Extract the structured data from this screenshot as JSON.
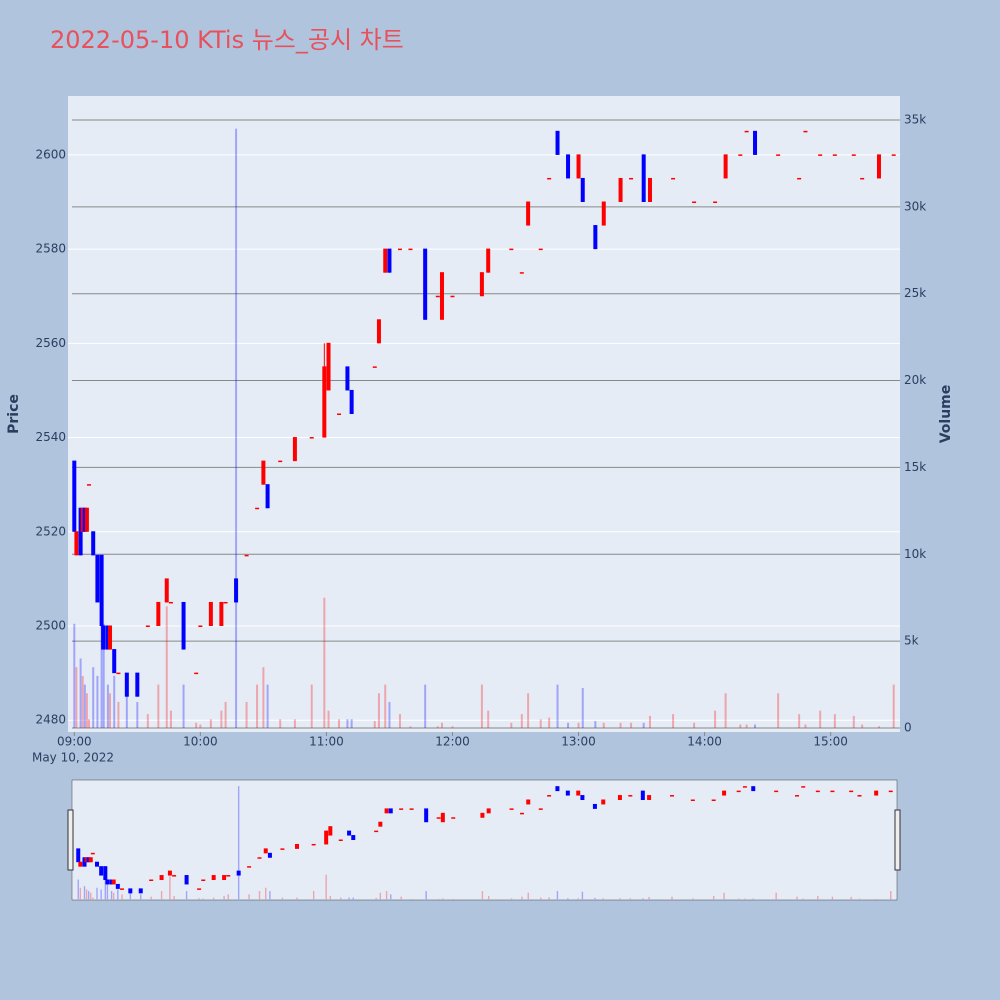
{
  "chart_data": {
    "type": "candlestick",
    "title": "2022-05-10 KTis 뉴스_공시 차트",
    "y_label": "Price",
    "y2_label": "Volume",
    "x_date_label": "May 10, 2022",
    "increasing_color": "#ff0000",
    "decreasing_color": "#0000ff",
    "xlim": [
      "08:57",
      "15:33"
    ],
    "xticks": [
      "09:00",
      "10:00",
      "11:00",
      "12:00",
      "13:00",
      "14:00",
      "15:00"
    ],
    "ylim": [
      2477.5,
      2612.5
    ],
    "yticks": [
      2480,
      2500,
      2520,
      2540,
      2560,
      2580,
      2600
    ],
    "y2lim": [
      -230,
      36380
    ],
    "y2ticks": [
      0,
      {
        "value": 5000,
        "label": "5k"
      },
      {
        "value": 10000,
        "label": "10k"
      },
      {
        "value": 15000,
        "label": "15k"
      },
      {
        "value": 20000,
        "label": "20k"
      },
      {
        "value": 25000,
        "label": "25k"
      },
      {
        "value": 30000,
        "label": "30k"
      },
      {
        "value": 35000,
        "label": "35k"
      }
    ],
    "x": [
      "09:00",
      "09:01",
      "09:03",
      "09:04",
      "09:05",
      "09:06",
      "09:07",
      "09:09",
      "09:11",
      "09:13",
      "09:14",
      "09:16",
      "09:17",
      "09:19",
      "09:21",
      "09:25",
      "09:30",
      "09:35",
      "09:40",
      "09:44",
      "09:46",
      "09:52",
      "09:58",
      "10:00",
      "10:05",
      "10:10",
      "10:12",
      "10:17",
      "10:22",
      "10:27",
      "10:30",
      "10:32",
      "10:38",
      "10:45",
      "10:53",
      "10:59",
      "11:01",
      "11:06",
      "11:10",
      "11:12",
      "11:23",
      "11:25",
      "11:28",
      "11:30",
      "11:35",
      "11:40",
      "11:47",
      "11:53",
      "11:55",
      "12:00",
      "12:14",
      "12:17",
      "12:28",
      "12:33",
      "12:36",
      "12:42",
      "12:46",
      "12:50",
      "12:55",
      "13:00",
      "13:02",
      "13:08",
      "13:12",
      "13:20",
      "13:25",
      "13:31",
      "13:34",
      "13:45",
      "13:55",
      "14:05",
      "14:10",
      "14:17",
      "14:20",
      "14:24",
      "14:35",
      "14:45",
      "14:48",
      "14:55",
      "15:02",
      "15:11",
      "15:15",
      "15:23",
      "15:30"
    ],
    "open": [
      2535,
      2515,
      2525,
      2520,
      2525,
      2520,
      2530,
      2520,
      2515,
      2515,
      2500,
      2500,
      2495,
      2495,
      2490,
      2490,
      2490,
      2500,
      2500,
      2505,
      2505,
      2505,
      2490,
      2500,
      2500,
      2500,
      2505,
      2510,
      2515,
      2525,
      2530,
      2530,
      2535,
      2535,
      2540,
      2540,
      2550,
      2545,
      2555,
      2550,
      2555,
      2560,
      2575,
      2580,
      2580,
      2580,
      2580,
      2570,
      2565,
      2570,
      2570,
      2575,
      2580,
      2575,
      2585,
      2580,
      2595,
      2605,
      2600,
      2595,
      2595,
      2585,
      2585,
      2590,
      2595,
      2600,
      2590,
      2595,
      2590,
      2590,
      2595,
      2600,
      2605,
      2605,
      2600,
      2595,
      2605,
      2600,
      2600,
      2600,
      2595,
      2595,
      2600
    ],
    "high": [
      2535,
      2520,
      2525,
      2525,
      2525,
      2525,
      2530,
      2520,
      2515,
      2515,
      2500,
      2500,
      2500,
      2495,
      2490,
      2490,
      2490,
      2500,
      2505,
      2510,
      2505,
      2505,
      2490,
      2500,
      2505,
      2505,
      2505,
      2510,
      2515,
      2525,
      2535,
      2530,
      2535,
      2540,
      2540,
      2560,
      2560,
      2545,
      2555,
      2550,
      2555,
      2565,
      2580,
      2580,
      2580,
      2580,
      2580,
      2570,
      2575,
      2570,
      2575,
      2580,
      2580,
      2575,
      2590,
      2580,
      2595,
      2605,
      2600,
      2600,
      2595,
      2585,
      2590,
      2595,
      2595,
      2600,
      2595,
      2595,
      2590,
      2590,
      2600,
      2600,
      2605,
      2605,
      2600,
      2595,
      2605,
      2600,
      2600,
      2600,
      2595,
      2600,
      2600
    ],
    "low": [
      2520,
      2515,
      2515,
      2520,
      2520,
      2520,
      2530,
      2515,
      2505,
      2495,
      2495,
      2495,
      2495,
      2490,
      2490,
      2485,
      2485,
      2500,
      2500,
      2505,
      2505,
      2495,
      2490,
      2500,
      2500,
      2500,
      2505,
      2505,
      2515,
      2525,
      2530,
      2525,
      2535,
      2535,
      2540,
      2540,
      2550,
      2545,
      2550,
      2545,
      2555,
      2560,
      2575,
      2575,
      2580,
      2580,
      2565,
      2570,
      2565,
      2570,
      2570,
      2575,
      2580,
      2575,
      2585,
      2580,
      2595,
      2600,
      2595,
      2595,
      2590,
      2580,
      2585,
      2590,
      2595,
      2590,
      2590,
      2595,
      2590,
      2590,
      2595,
      2600,
      2605,
      2600,
      2600,
      2595,
      2605,
      2600,
      2600,
      2600,
      2595,
      2595,
      2600
    ],
    "close": [
      2520,
      2520,
      2515,
      2525,
      2520,
      2525,
      2530,
      2515,
      2505,
      2500,
      2495,
      2495,
      2500,
      2490,
      2490,
      2485,
      2485,
      2500,
      2505,
      2510,
      2505,
      2495,
      2490,
      2500,
      2505,
      2505,
      2505,
      2505,
      2515,
      2525,
      2535,
      2525,
      2535,
      2540,
      2540,
      2555,
      2560,
      2545,
      2550,
      2545,
      2555,
      2565,
      2580,
      2575,
      2580,
      2580,
      2565,
      2570,
      2575,
      2570,
      2575,
      2580,
      2580,
      2575,
      2590,
      2580,
      2595,
      2600,
      2595,
      2600,
      2590,
      2580,
      2590,
      2595,
      2595,
      2590,
      2595,
      2595,
      2590,
      2590,
      2600,
      2600,
      2605,
      2600,
      2600,
      2595,
      2605,
      2600,
      2600,
      2600,
      2595,
      2600,
      2600
    ],
    "volume": [
      6000,
      3500,
      4000,
      3000,
      2500,
      2000,
      500,
      3500,
      3000,
      8000,
      6000,
      2500,
      2000,
      3000,
      1500,
      2000,
      1500,
      800,
      2500,
      7000,
      1000,
      2500,
      300,
      200,
      500,
      1000,
      1500,
      34500,
      1500,
      2500,
      3500,
      2500,
      500,
      500,
      2500,
      7500,
      1000,
      500,
      500,
      500,
      400,
      2000,
      2500,
      1500,
      800,
      100,
      2500,
      100,
      300,
      100,
      2500,
      1000,
      300,
      800,
      2000,
      500,
      600,
      2500,
      300,
      300,
      2300,
      400,
      300,
      300,
      300,
      300,
      700,
      800,
      300,
      1000,
      2000,
      200,
      200,
      200,
      2000,
      800,
      200,
      1000,
      800,
      700,
      200,
      100,
      2500
    ]
  }
}
